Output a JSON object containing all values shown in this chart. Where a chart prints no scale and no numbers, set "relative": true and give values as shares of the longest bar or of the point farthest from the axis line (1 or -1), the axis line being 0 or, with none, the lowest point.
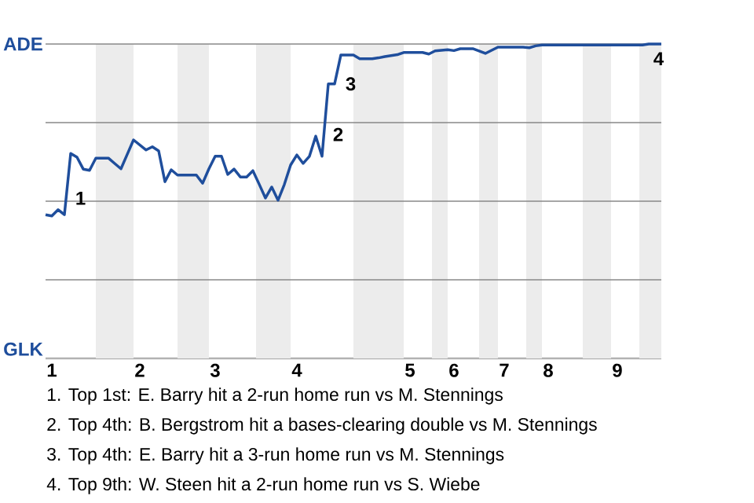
{
  "chart_data": {
    "type": "line",
    "relative": true,
    "categories": [
      null,
      "1",
      null,
      null,
      null,
      null,
      null,
      null,
      null,
      null,
      null,
      null,
      null,
      null,
      null,
      "2",
      null,
      null,
      null,
      null,
      null,
      null,
      null,
      null,
      null,
      null,
      null,
      "3",
      null,
      null,
      null,
      null,
      null,
      null,
      null,
      null,
      null,
      null,
      null,
      null,
      "4",
      null,
      null,
      null,
      null,
      null,
      null,
      null,
      null,
      null,
      null,
      null,
      null,
      null,
      null,
      null,
      null,
      null,
      "5",
      null,
      null,
      null,
      null,
      null,
      null,
      "6",
      null,
      null,
      null,
      null,
      null,
      null,
      null,
      "7",
      null,
      null,
      null,
      null,
      null,
      null,
      "8",
      null,
      null,
      null,
      null,
      null,
      null,
      null,
      null,
      null,
      null,
      "9",
      null,
      null,
      null,
      null,
      null,
      null,
      null
    ],
    "values": [
      0.457,
      0.453,
      0.473,
      0.457,
      0.652,
      0.64,
      0.602,
      0.598,
      0.637,
      0.637,
      0.637,
      0.62,
      0.603,
      0.649,
      0.695,
      0.679,
      0.663,
      0.673,
      0.66,
      0.562,
      0.6,
      0.583,
      0.583,
      0.583,
      0.583,
      0.557,
      0.603,
      0.643,
      0.643,
      0.585,
      0.602,
      0.577,
      0.577,
      0.597,
      0.554,
      0.51,
      0.545,
      0.503,
      0.553,
      0.615,
      0.647,
      0.62,
      0.643,
      0.707,
      0.643,
      0.873,
      0.873,
      0.965,
      0.965,
      0.965,
      0.953,
      0.953,
      0.953,
      0.956,
      0.96,
      0.963,
      0.966,
      0.973,
      0.973,
      0.973,
      0.973,
      0.968,
      0.978,
      0.98,
      0.982,
      0.979,
      0.985,
      0.985,
      0.985,
      0.978,
      0.97,
      0.98,
      0.99,
      0.99,
      0.99,
      0.99,
      0.99,
      0.988,
      0.994,
      0.997,
      0.997,
      0.997,
      0.997,
      0.997,
      0.997,
      0.997,
      0.997,
      0.997,
      0.997,
      0.997,
      0.997,
      0.997,
      0.997,
      0.997,
      0.997,
      0.997,
      1,
      1,
      1
    ],
    "color": "#1f4e9c",
    "marker": "none",
    "line_style": "solid",
    "ref_lines": [
      {
        "axis": "y",
        "value": 0.25,
        "color": "#888888"
      },
      {
        "axis": "y",
        "value": 0.5,
        "color": "#888888"
      },
      {
        "axis": "y",
        "value": 0.75,
        "color": "#888888"
      },
      {
        "axis": "y",
        "value": 1,
        "color": "#888888"
      }
    ],
    "annotations": [
      {
        "text": "1",
        "y": 0.652
      },
      {
        "text": "2",
        "y": 0.873
      },
      {
        "text": "3",
        "y": 0.965
      },
      {
        "text": "4",
        "y": 1
      },
      "ADE",
      "GLK",
      "1. Top 1st: E. Barry hit a 2-run home run vs M. Stennings",
      "2. Top 4th: B. Bergstrom hit a bases-clearing double vs M. Stennings",
      "3. Top 4th: E. Barry hit a 3-run home run vs M. Stennings",
      "4. Top 9th: W. Steen hit a 2-run home run vs S. Wiebe"
    ]
  }
}
